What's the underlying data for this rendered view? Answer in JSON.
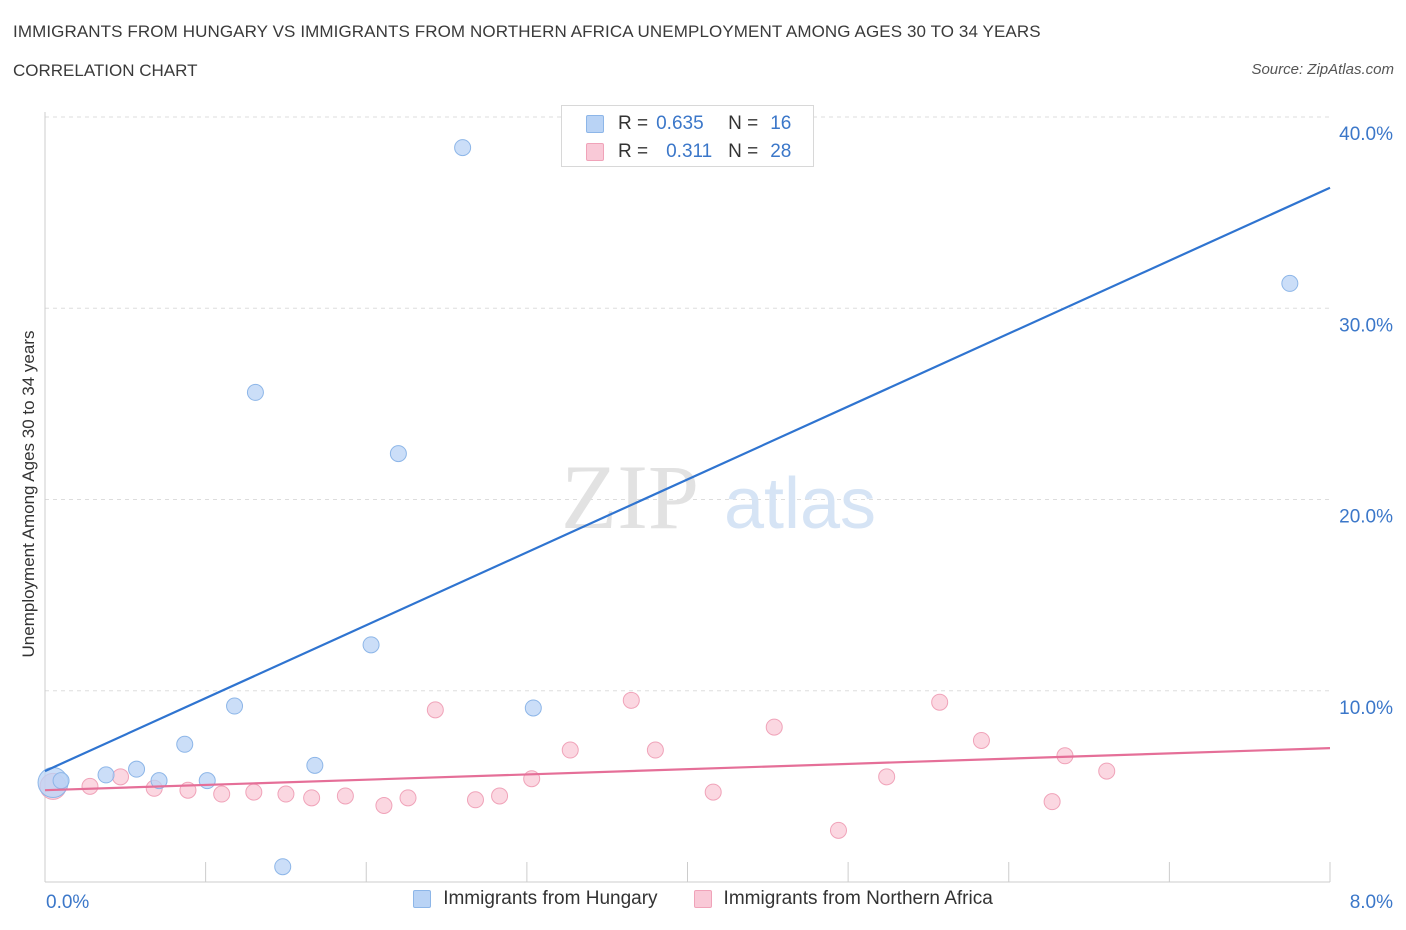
{
  "header": {
    "title": "IMMIGRANTS FROM HUNGARY VS IMMIGRANTS FROM NORTHERN AFRICA UNEMPLOYMENT AMONG AGES 30 TO 34 YEARS",
    "subtitle": "CORRELATION CHART",
    "source": "Source: ZipAtlas.com"
  },
  "watermark": {
    "zip": "ZIP",
    "atlas": "atlas"
  },
  "stats": [
    {
      "r_label": "R =",
      "r_value": "0.635",
      "n_label": "N =",
      "n_value": "16"
    },
    {
      "r_label": "R =",
      "r_value": "0.311",
      "n_label": "N =",
      "n_value": "28"
    }
  ],
  "colors": {
    "hungary_fill": "#b9d3f5",
    "hungary_stroke": "#8db6e8",
    "hungary_line": "#2f74d0",
    "africa_fill": "#f9c9d7",
    "africa_stroke": "#f0a3b9",
    "africa_line": "#e56f98",
    "tick_label": "#3b77c9",
    "grid": "#dddddd"
  },
  "chart_data": {
    "type": "scatter",
    "title": "IMMIGRANTS FROM HUNGARY VS IMMIGRANTS FROM NORTHERN AFRICA UNEMPLOYMENT AMONG AGES 30 TO 34 YEARS",
    "xlabel": "",
    "ylabel": "Unemployment Among Ages 30 to 34 years",
    "xlim": [
      0,
      8
    ],
    "ylim": [
      0,
      40
    ],
    "x_tick_labels": [
      "0.0%",
      "8.0%"
    ],
    "y_ticks": [
      10,
      20,
      30,
      40
    ],
    "y_tick_labels": [
      "10.0%",
      "20.0%",
      "30.0%",
      "40.0%"
    ],
    "grid": true,
    "legend": [
      "Immigrants from Hungary",
      "Immigrants from Northern Africa"
    ],
    "legend_position": "bottom",
    "series": [
      {
        "name": "Immigrants from Hungary",
        "r": 0.635,
        "n": 16,
        "points": [
          [
            0.05,
            5.2
          ],
          [
            0.38,
            5.6
          ],
          [
            0.57,
            5.9
          ],
          [
            0.71,
            5.3
          ],
          [
            0.87,
            7.2
          ],
          [
            1.01,
            5.3
          ],
          [
            1.18,
            9.2
          ],
          [
            1.31,
            25.6
          ],
          [
            1.48,
            0.8
          ],
          [
            1.68,
            6.1
          ],
          [
            2.03,
            12.4
          ],
          [
            2.2,
            22.4
          ],
          [
            2.6,
            38.4
          ],
          [
            3.04,
            9.1
          ],
          [
            7.75,
            31.3
          ],
          [
            0.1,
            5.3
          ]
        ],
        "trend": {
          "x": [
            0,
            8
          ],
          "y": [
            5.8,
            36.3
          ]
        }
      },
      {
        "name": "Immigrants from Northern Africa",
        "r": 0.311,
        "n": 28,
        "points": [
          [
            0.05,
            5.0
          ],
          [
            0.28,
            5.0
          ],
          [
            0.47,
            5.5
          ],
          [
            0.68,
            4.9
          ],
          [
            0.89,
            4.8
          ],
          [
            1.1,
            4.6
          ],
          [
            1.3,
            4.7
          ],
          [
            1.5,
            4.6
          ],
          [
            1.66,
            4.4
          ],
          [
            1.87,
            4.5
          ],
          [
            2.11,
            4.0
          ],
          [
            2.26,
            4.4
          ],
          [
            2.43,
            9.0
          ],
          [
            2.68,
            4.3
          ],
          [
            2.83,
            4.5
          ],
          [
            3.03,
            5.4
          ],
          [
            3.27,
            6.9
          ],
          [
            3.65,
            9.5
          ],
          [
            3.8,
            6.9
          ],
          [
            4.16,
            4.7
          ],
          [
            4.54,
            8.1
          ],
          [
            4.94,
            2.7
          ],
          [
            5.24,
            5.5
          ],
          [
            5.57,
            9.4
          ],
          [
            5.83,
            7.4
          ],
          [
            6.27,
            4.2
          ],
          [
            6.35,
            6.6
          ],
          [
            6.61,
            5.8
          ]
        ],
        "trend": {
          "x": [
            0,
            8
          ],
          "y": [
            4.8,
            7.0
          ]
        }
      }
    ]
  }
}
